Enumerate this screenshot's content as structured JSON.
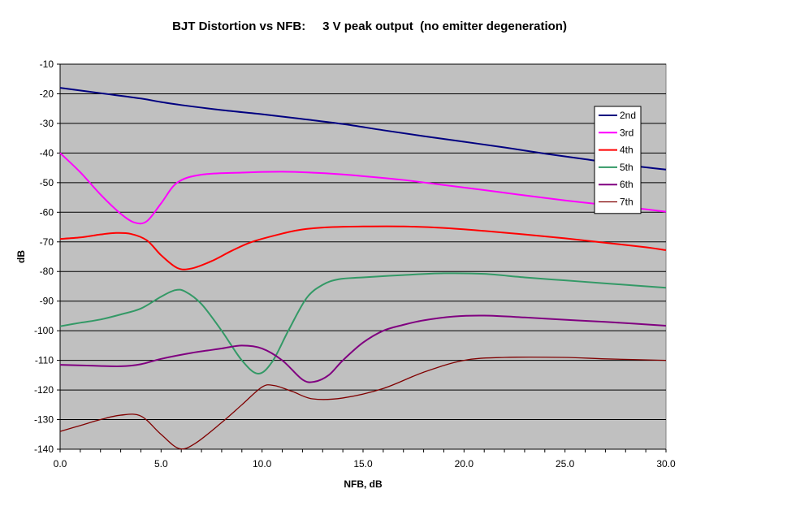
{
  "chart_data": {
    "type": "line",
    "title": "BJT Distortion vs NFB:     3 V peak output  (no emitter degeneration)",
    "xlabel": "NFB, dB",
    "ylabel": "dB",
    "xlim": [
      0,
      30
    ],
    "ylim": [
      -140,
      -10
    ],
    "x_ticks": [
      "0.0",
      "5.0",
      "10.0",
      "15.0",
      "20.0",
      "25.0",
      "30.0"
    ],
    "y_ticks": [
      "-10",
      "-20",
      "-30",
      "-40",
      "-50",
      "-60",
      "-70",
      "-80",
      "-90",
      "-100",
      "-110",
      "-120",
      "-130",
      "-140"
    ],
    "grid": "horizontal",
    "legend_position": "right",
    "plot_background": "#c0c0c0",
    "series": [
      {
        "name": "2nd",
        "color": "#000080",
        "points": [
          [
            0,
            -18
          ],
          [
            2,
            -19.8
          ],
          [
            4,
            -21.6
          ],
          [
            5,
            -22.8
          ],
          [
            6,
            -23.8
          ],
          [
            8,
            -25.5
          ],
          [
            10,
            -26.9
          ],
          [
            12,
            -28.5
          ],
          [
            14,
            -30.2
          ],
          [
            16,
            -32.3
          ],
          [
            18,
            -34.3
          ],
          [
            20,
            -36.2
          ],
          [
            22,
            -38.1
          ],
          [
            24,
            -40.2
          ],
          [
            26,
            -42.1
          ],
          [
            28,
            -44
          ],
          [
            30,
            -45.6
          ]
        ]
      },
      {
        "name": "3rd",
        "color": "#ff00ff",
        "points": [
          [
            0,
            -40
          ],
          [
            1,
            -46.5
          ],
          [
            2,
            -54
          ],
          [
            3,
            -60.5
          ],
          [
            3.7,
            -63.5
          ],
          [
            4.3,
            -63
          ],
          [
            5,
            -57
          ],
          [
            5.8,
            -50
          ],
          [
            7,
            -47.3
          ],
          [
            9,
            -46.6
          ],
          [
            11,
            -46.3
          ],
          [
            13,
            -46.8
          ],
          [
            15,
            -47.8
          ],
          [
            17,
            -49.1
          ],
          [
            19,
            -50.8
          ],
          [
            21,
            -52.5
          ],
          [
            23,
            -54.3
          ],
          [
            25,
            -56
          ],
          [
            27,
            -57.5
          ],
          [
            29,
            -59
          ],
          [
            30,
            -59.8
          ]
        ]
      },
      {
        "name": "4th",
        "color": "#ff0000",
        "points": [
          [
            0,
            -69
          ],
          [
            1,
            -68.5
          ],
          [
            2,
            -67.5
          ],
          [
            2.7,
            -67
          ],
          [
            3.5,
            -67.3
          ],
          [
            4.3,
            -69.5
          ],
          [
            5,
            -74.5
          ],
          [
            5.8,
            -78.8
          ],
          [
            6.5,
            -79
          ],
          [
            7.5,
            -76.5
          ],
          [
            8.5,
            -73
          ],
          [
            9.5,
            -70
          ],
          [
            11,
            -67.2
          ],
          [
            12,
            -65.8
          ],
          [
            13.5,
            -65
          ],
          [
            15,
            -64.8
          ],
          [
            17,
            -64.8
          ],
          [
            19,
            -65.3
          ],
          [
            21,
            -66.3
          ],
          [
            23,
            -67.5
          ],
          [
            25,
            -68.8
          ],
          [
            27,
            -70.3
          ],
          [
            29,
            -71.8
          ],
          [
            30,
            -72.8
          ]
        ]
      },
      {
        "name": "5th",
        "color": "#339966",
        "points": [
          [
            0,
            -98.5
          ],
          [
            1,
            -97.3
          ],
          [
            2,
            -96.2
          ],
          [
            3,
            -94.5
          ],
          [
            4,
            -92.5
          ],
          [
            5,
            -88.5
          ],
          [
            5.7,
            -86.3
          ],
          [
            6.2,
            -86.8
          ],
          [
            7,
            -91
          ],
          [
            8,
            -100
          ],
          [
            9,
            -110
          ],
          [
            9.8,
            -114.5
          ],
          [
            10.5,
            -110.5
          ],
          [
            11.3,
            -100
          ],
          [
            12.2,
            -89
          ],
          [
            13,
            -84.5
          ],
          [
            13.8,
            -82.6
          ],
          [
            15,
            -82
          ],
          [
            17,
            -81.2
          ],
          [
            19,
            -80.6
          ],
          [
            21,
            -80.8
          ],
          [
            23,
            -82
          ],
          [
            25,
            -83
          ],
          [
            27,
            -84
          ],
          [
            30,
            -85.5
          ]
        ]
      },
      {
        "name": "6th",
        "color": "#800080",
        "points": [
          [
            0,
            -111.5
          ],
          [
            1.5,
            -111.8
          ],
          [
            3,
            -112
          ],
          [
            4,
            -111.3
          ],
          [
            5,
            -109.5
          ],
          [
            6.5,
            -107.5
          ],
          [
            8,
            -106
          ],
          [
            9,
            -105
          ],
          [
            10,
            -106
          ],
          [
            11,
            -110
          ],
          [
            12,
            -116.5
          ],
          [
            12.6,
            -117.2
          ],
          [
            13.3,
            -115
          ],
          [
            14,
            -110
          ],
          [
            15,
            -104
          ],
          [
            16,
            -100
          ],
          [
            17,
            -98
          ],
          [
            18,
            -96.5
          ],
          [
            19.5,
            -95.2
          ],
          [
            21,
            -94.9
          ],
          [
            23,
            -95.5
          ],
          [
            25,
            -96.3
          ],
          [
            27,
            -97
          ],
          [
            30,
            -98.3
          ]
        ]
      },
      {
        "name": "7th",
        "color": "#800000",
        "points": [
          [
            0,
            -134
          ],
          [
            1,
            -132
          ],
          [
            2,
            -130
          ],
          [
            3,
            -128.5
          ],
          [
            4,
            -128.8
          ],
          [
            5,
            -135
          ],
          [
            5.9,
            -139.8
          ],
          [
            6.7,
            -138
          ],
          [
            8,
            -131
          ],
          [
            9,
            -125
          ],
          [
            10,
            -119
          ],
          [
            10.6,
            -118.5
          ],
          [
            11.5,
            -120.5
          ],
          [
            12.5,
            -123
          ],
          [
            14,
            -122.7
          ],
          [
            16,
            -119.5
          ],
          [
            18,
            -114
          ],
          [
            20,
            -110
          ],
          [
            22,
            -109
          ],
          [
            25,
            -109
          ],
          [
            27,
            -109.5
          ],
          [
            30,
            -110
          ]
        ]
      }
    ]
  }
}
